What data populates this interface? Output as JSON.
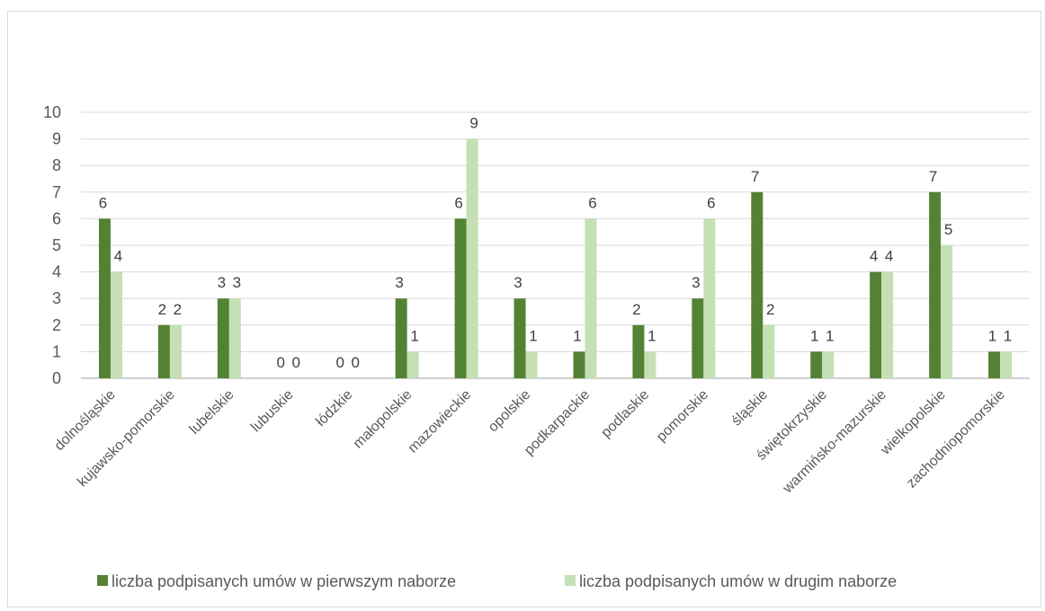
{
  "chart_data": {
    "type": "bar",
    "title": "",
    "xlabel": "",
    "ylabel": "",
    "ylim": [
      0,
      10
    ],
    "yticks": [
      0,
      1,
      2,
      3,
      4,
      5,
      6,
      7,
      8,
      9,
      10
    ],
    "grid": true,
    "legend_position": "bottom",
    "categories": [
      "dolnośląskie",
      "kujawsko-pomorskie",
      "lubelskie",
      "lubuskie",
      "łódzkie",
      "małopolskie",
      "mazowieckie",
      "opolskie",
      "podkarpackie",
      "podlaskie",
      "pomorskie",
      "śląskie",
      "świętokrzyskie",
      "warmińsko-mazurskie",
      "wielkopolskie",
      "zachodniopomorskie"
    ],
    "series": [
      {
        "name": "liczba podpisanych umów w pierwszym naborze",
        "color": "#548235",
        "values": [
          6,
          2,
          3,
          0,
          0,
          3,
          6,
          3,
          1,
          2,
          3,
          7,
          1,
          4,
          7,
          1
        ]
      },
      {
        "name": "liczba podpisanych umów w drugim naborze",
        "color": "#c5e0b4",
        "values": [
          4,
          2,
          3,
          0,
          0,
          1,
          9,
          1,
          6,
          1,
          6,
          2,
          1,
          4,
          5,
          1
        ]
      }
    ]
  }
}
